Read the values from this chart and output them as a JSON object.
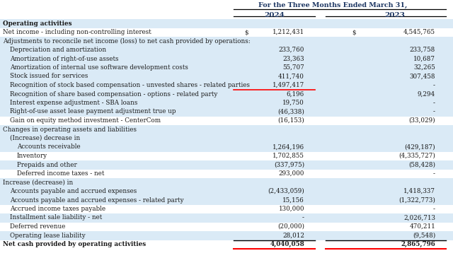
{
  "title": "For the Three Months Ended March 31,",
  "col_headers": [
    "2024",
    "2023"
  ],
  "bg_color": "#ffffff",
  "row_alt_color": "#daeaf6",
  "rows": [
    {
      "label": "Operating activities",
      "val2024": "",
      "val2023": "",
      "style": "bold",
      "indent": 0,
      "bg": "alt"
    },
    {
      "label": "Net income - including non-controlling interest",
      "val2024": "1,212,431",
      "val2023": "4,545,765",
      "style": "normal",
      "indent": 0,
      "dollar2024": true,
      "dollar2023": true,
      "bg": "white"
    },
    {
      "label": "Adjustments to reconcile net income (loss) to net cash provided by operations:",
      "val2024": "",
      "val2023": "",
      "style": "normal",
      "indent": 0,
      "bg": "alt"
    },
    {
      "label": "Depreciation and amortization",
      "val2024": "233,760",
      "val2023": "233,758",
      "style": "normal",
      "indent": 1,
      "bg": "alt"
    },
    {
      "label": "Amortization of right-of-use assets",
      "val2024": "23,363",
      "val2023": "10,687",
      "style": "normal",
      "indent": 1,
      "bg": "alt"
    },
    {
      "label": "Amortization of internal use software development costs",
      "val2024": "55,707",
      "val2023": "32,265",
      "style": "normal",
      "indent": 1,
      "bg": "alt"
    },
    {
      "label": "Stock issued for services",
      "val2024": "411,740",
      "val2023": "307,458",
      "style": "normal",
      "indent": 1,
      "bg": "alt"
    },
    {
      "label": "Recognition of stock based compensation - unvested shares - related parties",
      "val2024": "1,497,417",
      "val2023": "-",
      "style": "normal",
      "indent": 1,
      "bg": "alt",
      "red_underline_2024": true
    },
    {
      "label": "Recognition of share based compensation - options - related party",
      "val2024": "6,196",
      "val2023": "9,294",
      "style": "normal",
      "indent": 1,
      "bg": "alt"
    },
    {
      "label": "Interest expense adjustment - SBA loans",
      "val2024": "19,750",
      "val2023": "-",
      "style": "normal",
      "indent": 1,
      "bg": "alt"
    },
    {
      "label": "Right-of-use asset lease payment adjustment true up",
      "val2024": "(46,338)",
      "val2023": "-",
      "style": "normal",
      "indent": 1,
      "bg": "alt"
    },
    {
      "label": "Gain on equity method investment - CenterCom",
      "val2024": "(16,153)",
      "val2023": "(33,029)",
      "style": "normal",
      "indent": 1,
      "bg": "white"
    },
    {
      "label": "Changes in operating assets and liabilities",
      "val2024": "",
      "val2023": "",
      "style": "normal",
      "indent": 0,
      "bg": "alt"
    },
    {
      "label": "(Increase) decrease in",
      "val2024": "",
      "val2023": "",
      "style": "normal",
      "indent": 1,
      "bg": "alt"
    },
    {
      "label": "Accounts receivable",
      "val2024": "1,264,196",
      "val2023": "(429,187)",
      "style": "normal",
      "indent": 2,
      "bg": "alt"
    },
    {
      "label": "Inventory",
      "val2024": "1,702,855",
      "val2023": "(4,335,727)",
      "style": "normal",
      "indent": 2,
      "bg": "white"
    },
    {
      "label": "Prepaids and other",
      "val2024": "(337,975)",
      "val2023": "(58,428)",
      "style": "normal",
      "indent": 2,
      "bg": "alt"
    },
    {
      "label": "Deferred income taxes - net",
      "val2024": "293,000",
      "val2023": "-",
      "style": "normal",
      "indent": 2,
      "bg": "white"
    },
    {
      "label": "Increase (decrease) in",
      "val2024": "",
      "val2023": "",
      "style": "normal",
      "indent": 0,
      "bg": "alt"
    },
    {
      "label": "Accounts payable and accrued expenses",
      "val2024": "(2,433,059)",
      "val2023": "1,418,337",
      "style": "normal",
      "indent": 1,
      "bg": "alt"
    },
    {
      "label": "Accounts payable and accrued expenses - related party",
      "val2024": "15,156",
      "val2023": "(1,322,773)",
      "style": "normal",
      "indent": 1,
      "bg": "alt"
    },
    {
      "label": "Accrued income taxes payable",
      "val2024": "130,000",
      "val2023": "-",
      "style": "normal",
      "indent": 1,
      "bg": "white"
    },
    {
      "label": "Installment sale liability - net",
      "val2024": "-",
      "val2023": "2,026,713",
      "style": "normal",
      "indent": 1,
      "bg": "alt"
    },
    {
      "label": "Deferred revenue",
      "val2024": "(20,000)",
      "val2023": "470,211",
      "style": "normal",
      "indent": 1,
      "bg": "white"
    },
    {
      "label": "Operating lease liability",
      "val2024": "28,012",
      "val2023": "(9,548)",
      "style": "normal",
      "indent": 1,
      "bg": "alt"
    },
    {
      "label": "Net cash provided by operating activities",
      "val2024": "4,040,058",
      "val2023": "2,865,796",
      "style": "bold",
      "indent": 0,
      "bg": "white",
      "black_topline": true,
      "red_bottomline": true
    }
  ]
}
